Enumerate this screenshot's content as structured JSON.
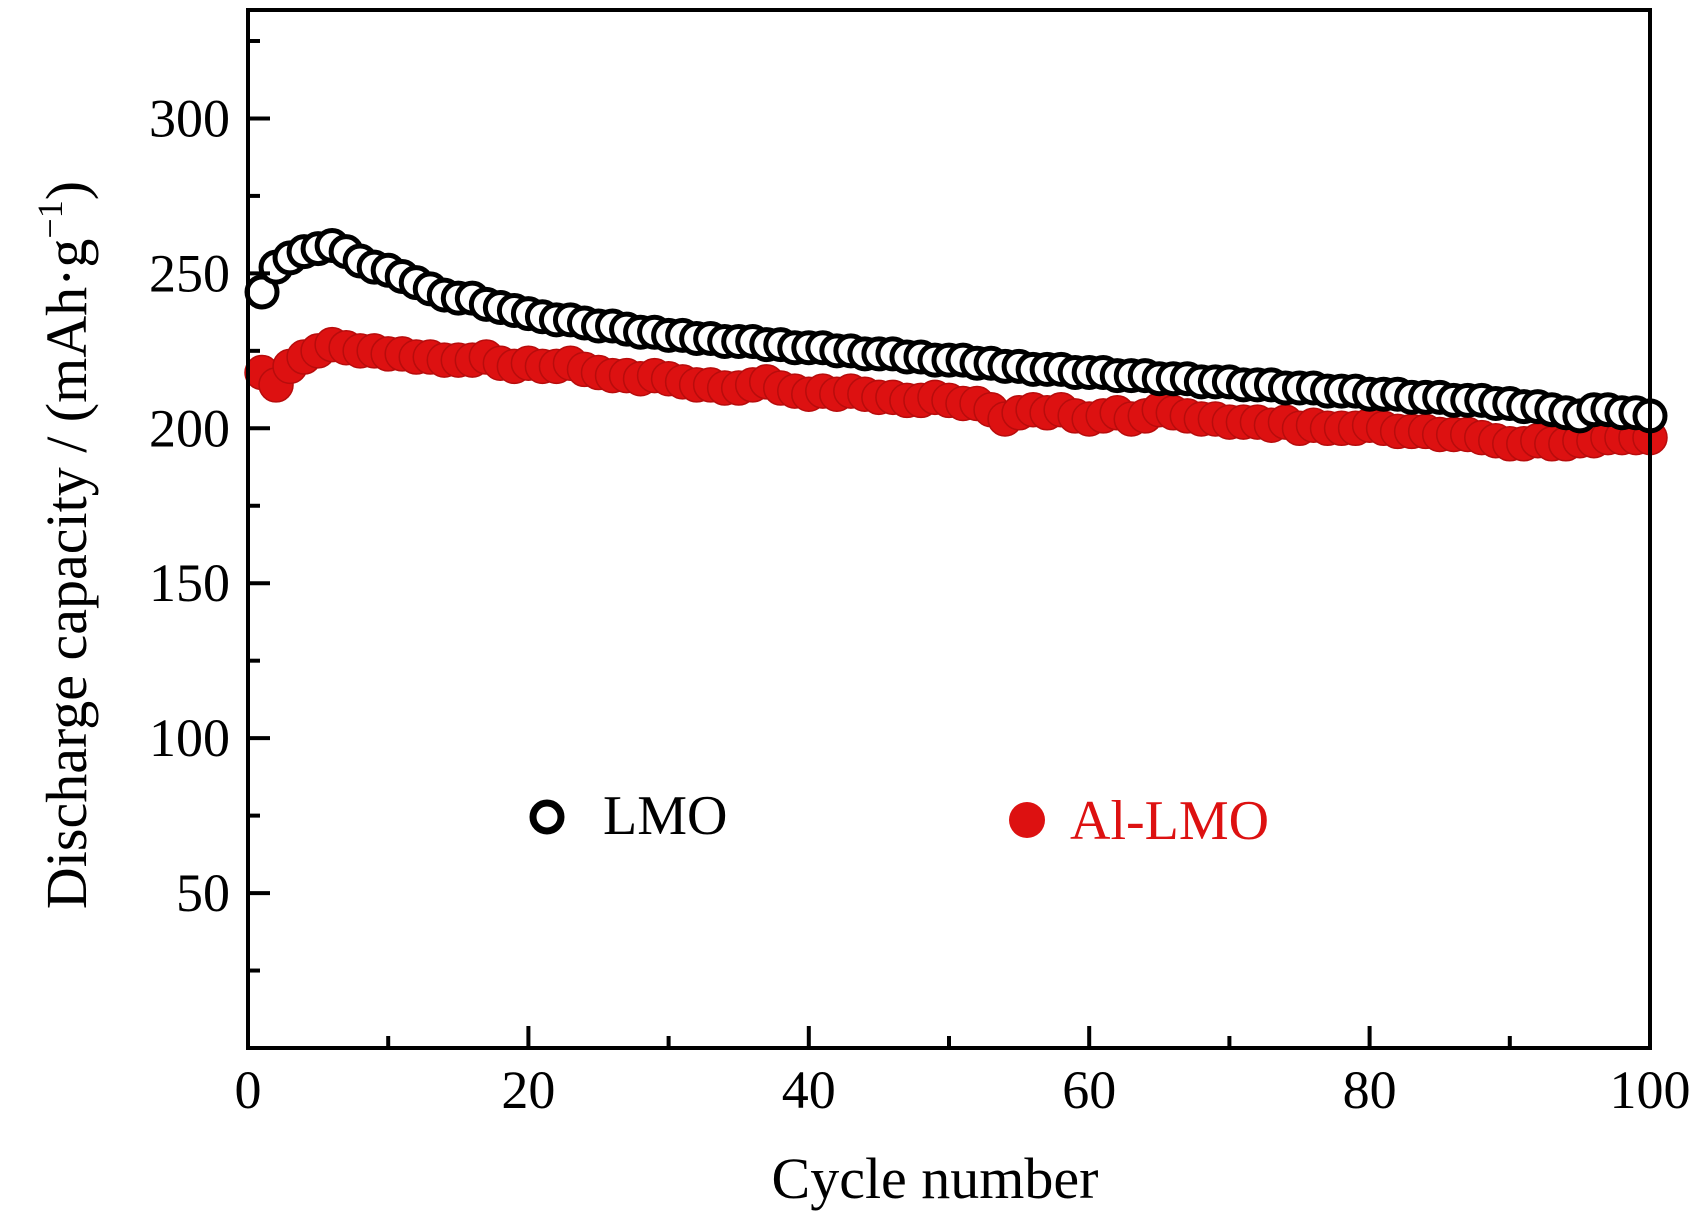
{
  "chart_data": {
    "type": "scatter",
    "title": "",
    "xlabel": "Cycle number",
    "ylabel": "Discharge capacity / (mAh·g",
    "ylabel_sup": "−1",
    "ylabel_close": ")",
    "xlim": [
      0,
      100
    ],
    "ylim": [
      0,
      335
    ],
    "x_ticks": [
      0,
      20,
      40,
      60,
      80,
      100
    ],
    "y_ticks": [
      50,
      100,
      150,
      200,
      250,
      300
    ],
    "grid": false,
    "legend_position": "center",
    "series": [
      {
        "name": "LMO",
        "color": "#000000",
        "marker": "open-circle",
        "x": [
          1,
          2,
          3,
          4,
          5,
          6,
          7,
          8,
          9,
          10,
          11,
          12,
          13,
          14,
          15,
          16,
          17,
          18,
          19,
          20,
          21,
          22,
          23,
          24,
          25,
          26,
          27,
          28,
          29,
          30,
          31,
          32,
          33,
          34,
          35,
          36,
          37,
          38,
          39,
          40,
          41,
          42,
          43,
          44,
          45,
          46,
          47,
          48,
          49,
          50,
          51,
          52,
          53,
          54,
          55,
          56,
          57,
          58,
          59,
          60,
          61,
          62,
          63,
          64,
          65,
          66,
          67,
          68,
          69,
          70,
          71,
          72,
          73,
          74,
          75,
          76,
          77,
          78,
          79,
          80,
          81,
          82,
          83,
          84,
          85,
          86,
          87,
          88,
          89,
          90,
          91,
          92,
          93,
          94,
          95,
          96,
          97,
          98,
          99,
          100
        ],
        "y": [
          244,
          252,
          255,
          257,
          258,
          259,
          257,
          254,
          252,
          251,
          249,
          247,
          245,
          243,
          242,
          242,
          240,
          239,
          238,
          237,
          236,
          235,
          235,
          234,
          233,
          233,
          232,
          231,
          231,
          230,
          230,
          229,
          229,
          228,
          228,
          228,
          227,
          227,
          226,
          226,
          226,
          225,
          225,
          224,
          224,
          224,
          223,
          223,
          222,
          222,
          222,
          221,
          221,
          220,
          220,
          219,
          219,
          219,
          218,
          218,
          218,
          217,
          217,
          217,
          216,
          216,
          216,
          215,
          215,
          215,
          214,
          214,
          214,
          213,
          213,
          213,
          212,
          212,
          212,
          211,
          211,
          211,
          210,
          210,
          210,
          209,
          209,
          209,
          208,
          208,
          207,
          207,
          206,
          205,
          204,
          206,
          206,
          205,
          205,
          204
        ]
      },
      {
        "name": "Al-LMO",
        "color": "#dd1111",
        "marker": "filled-circle",
        "x": [
          1,
          2,
          3,
          4,
          5,
          6,
          7,
          8,
          9,
          10,
          11,
          12,
          13,
          14,
          15,
          16,
          17,
          18,
          19,
          20,
          21,
          22,
          23,
          24,
          25,
          26,
          27,
          28,
          29,
          30,
          31,
          32,
          33,
          34,
          35,
          36,
          37,
          38,
          39,
          40,
          41,
          42,
          43,
          44,
          45,
          46,
          47,
          48,
          49,
          50,
          51,
          52,
          53,
          54,
          55,
          56,
          57,
          58,
          59,
          60,
          61,
          62,
          63,
          64,
          65,
          66,
          67,
          68,
          69,
          70,
          71,
          72,
          73,
          74,
          75,
          76,
          77,
          78,
          79,
          80,
          81,
          82,
          83,
          84,
          85,
          86,
          87,
          88,
          89,
          90,
          91,
          92,
          93,
          94,
          95,
          96,
          97,
          98,
          99,
          100
        ],
        "y": [
          218,
          214,
          220,
          223,
          225,
          227,
          226,
          225,
          225,
          224,
          224,
          223,
          223,
          222,
          222,
          222,
          223,
          221,
          220,
          221,
          220,
          220,
          221,
          219,
          218,
          217,
          217,
          216,
          217,
          216,
          215,
          214,
          214,
          213,
          213,
          214,
          215,
          213,
          212,
          211,
          212,
          211,
          212,
          211,
          210,
          210,
          209,
          209,
          210,
          209,
          208,
          208,
          206,
          203,
          205,
          206,
          205,
          206,
          204,
          203,
          204,
          205,
          203,
          204,
          206,
          205,
          204,
          203,
          203,
          202,
          202,
          202,
          201,
          202,
          200,
          201,
          200,
          200,
          200,
          201,
          200,
          199,
          199,
          199,
          198,
          198,
          198,
          197,
          196,
          195,
          195,
          196,
          195,
          195,
          196,
          196,
          197,
          197,
          197,
          197
        ]
      }
    ]
  }
}
